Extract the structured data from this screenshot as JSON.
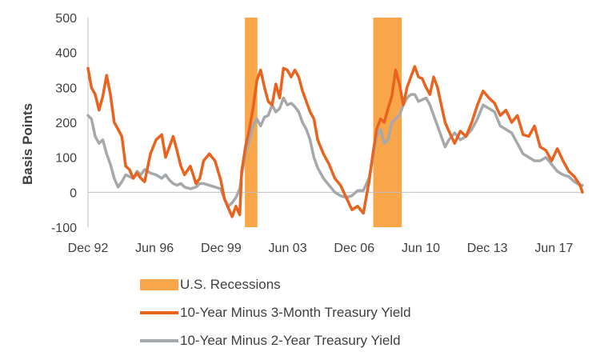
{
  "chart_data": {
    "type": "line",
    "title": "",
    "ylabel": "Basis Points",
    "xlabel": "",
    "ylim": [
      -100,
      500
    ],
    "yticks": [
      -100,
      0,
      100,
      200,
      300,
      400,
      500
    ],
    "ytick_labels": [
      "-100",
      "0",
      "100",
      "200",
      "300",
      "400",
      "500"
    ],
    "xlim": [
      1992.92,
      2018.92
    ],
    "xticks": [
      1992.92,
      1996.42,
      1999.92,
      2003.42,
      2006.92,
      2010.42,
      2013.92,
      2017.42
    ],
    "xtick_labels": [
      "Dec 92",
      "Jun 96",
      "Dec 99",
      "Jun 03",
      "Dec 06",
      "Jun 10",
      "Dec 13",
      "Jun 17"
    ],
    "grid": false,
    "legend_position": "bottom",
    "recession_label": "U.S. Recessions",
    "recession_color": "#F9A54A",
    "recessions": [
      [
        2001.17,
        2001.83
      ],
      [
        2007.92,
        2009.42
      ]
    ],
    "series": [
      {
        "name": "10-Year Minus 3-Month Treasury Yield",
        "color": "#E8641E",
        "x": [
          1992.92,
          1993.1,
          1993.3,
          1993.5,
          1993.7,
          1993.9,
          1994.1,
          1994.3,
          1994.5,
          1994.7,
          1994.9,
          1995.1,
          1995.3,
          1995.5,
          1995.7,
          1995.9,
          1996.2,
          1996.5,
          1996.8,
          1997.0,
          1997.2,
          1997.4,
          1997.6,
          1997.8,
          1998.0,
          1998.3,
          1998.6,
          1998.8,
          1999.0,
          1999.3,
          1999.6,
          1999.9,
          2000.1,
          2000.3,
          2000.5,
          2000.7,
          2000.9,
          2001.0,
          2001.2,
          2001.4,
          2001.6,
          2001.8,
          2002.0,
          2002.2,
          2002.4,
          2002.6,
          2002.8,
          2003.0,
          2003.2,
          2003.4,
          2003.6,
          2003.8,
          2004.0,
          2004.2,
          2004.4,
          2004.6,
          2004.8,
          2005.0,
          2005.3,
          2005.6,
          2005.9,
          2006.2,
          2006.5,
          2006.8,
          2007.1,
          2007.4,
          2007.7,
          2007.9,
          2008.1,
          2008.3,
          2008.5,
          2008.7,
          2008.9,
          2009.1,
          2009.3,
          2009.5,
          2009.7,
          2009.9,
          2010.1,
          2010.3,
          2010.5,
          2010.7,
          2010.9,
          2011.1,
          2011.3,
          2011.5,
          2011.7,
          2011.9,
          2012.2,
          2012.5,
          2012.8,
          2013.1,
          2013.4,
          2013.7,
          2014.0,
          2014.3,
          2014.6,
          2014.9,
          2015.2,
          2015.5,
          2015.8,
          2016.1,
          2016.4,
          2016.7,
          2017.0,
          2017.3,
          2017.6,
          2017.9,
          2018.2,
          2018.5,
          2018.8,
          2018.92
        ],
        "values": [
          355,
          300,
          280,
          235,
          275,
          335,
          280,
          200,
          180,
          160,
          75,
          65,
          40,
          55,
          40,
          30,
          110,
          150,
          165,
          100,
          130,
          160,
          120,
          75,
          50,
          75,
          25,
          40,
          90,
          110,
          90,
          35,
          -20,
          -45,
          -70,
          -40,
          -65,
          60,
          130,
          180,
          240,
          320,
          350,
          300,
          260,
          250,
          310,
          270,
          355,
          350,
          330,
          350,
          330,
          290,
          260,
          230,
          210,
          150,
          110,
          80,
          40,
          20,
          -15,
          -50,
          -40,
          -60,
          30,
          110,
          180,
          210,
          200,
          240,
          275,
          350,
          310,
          250,
          300,
          330,
          360,
          330,
          325,
          300,
          280,
          330,
          300,
          250,
          200,
          175,
          140,
          175,
          160,
          200,
          250,
          290,
          270,
          255,
          220,
          235,
          200,
          220,
          165,
          160,
          190,
          130,
          120,
          90,
          125,
          90,
          60,
          45,
          20,
          0
        ]
      },
      {
        "name": "10-Year Minus 2-Year Treasury Yield",
        "color": "#A6A9AC",
        "x": [
          1992.92,
          1993.1,
          1993.3,
          1993.5,
          1993.7,
          1993.9,
          1994.1,
          1994.3,
          1994.5,
          1994.7,
          1994.9,
          1995.1,
          1995.3,
          1995.5,
          1995.7,
          1995.9,
          1996.2,
          1996.5,
          1996.8,
          1997.0,
          1997.2,
          1997.4,
          1997.6,
          1997.8,
          1998.0,
          1998.3,
          1998.6,
          1998.8,
          1999.0,
          1999.3,
          1999.6,
          1999.9,
          2000.1,
          2000.3,
          2000.5,
          2000.7,
          2000.9,
          2001.0,
          2001.2,
          2001.4,
          2001.6,
          2001.8,
          2002.0,
          2002.2,
          2002.4,
          2002.6,
          2002.8,
          2003.0,
          2003.2,
          2003.4,
          2003.6,
          2003.8,
          2004.0,
          2004.2,
          2004.4,
          2004.6,
          2004.8,
          2005.0,
          2005.3,
          2005.6,
          2005.9,
          2006.2,
          2006.5,
          2006.8,
          2007.1,
          2007.4,
          2007.7,
          2007.9,
          2008.1,
          2008.3,
          2008.5,
          2008.7,
          2008.9,
          2009.1,
          2009.3,
          2009.5,
          2009.7,
          2009.9,
          2010.1,
          2010.3,
          2010.5,
          2010.7,
          2010.9,
          2011.1,
          2011.3,
          2011.5,
          2011.7,
          2011.9,
          2012.2,
          2012.5,
          2012.8,
          2013.1,
          2013.4,
          2013.7,
          2014.0,
          2014.3,
          2014.6,
          2014.9,
          2015.2,
          2015.5,
          2015.8,
          2016.1,
          2016.4,
          2016.7,
          2017.0,
          2017.3,
          2017.6,
          2017.9,
          2018.2,
          2018.5,
          2018.8,
          2018.92
        ],
        "values": [
          220,
          210,
          160,
          140,
          150,
          110,
          80,
          40,
          15,
          30,
          50,
          45,
          40,
          60,
          50,
          65,
          55,
          50,
          40,
          50,
          35,
          25,
          20,
          25,
          15,
          10,
          15,
          25,
          25,
          20,
          15,
          10,
          -20,
          -40,
          -30,
          -15,
          10,
          50,
          110,
          150,
          190,
          210,
          190,
          215,
          220,
          250,
          230,
          240,
          270,
          250,
          255,
          245,
          230,
          200,
          180,
          150,
          100,
          70,
          40,
          20,
          0,
          -10,
          -15,
          -10,
          5,
          5,
          40,
          100,
          160,
          180,
          140,
          150,
          200,
          210,
          220,
          250,
          270,
          280,
          280,
          260,
          265,
          270,
          250,
          220,
          190,
          160,
          130,
          150,
          170,
          150,
          160,
          180,
          210,
          250,
          240,
          230,
          190,
          180,
          170,
          140,
          110,
          100,
          90,
          90,
          100,
          80,
          60,
          50,
          45,
          30,
          20,
          20
        ]
      }
    ]
  }
}
